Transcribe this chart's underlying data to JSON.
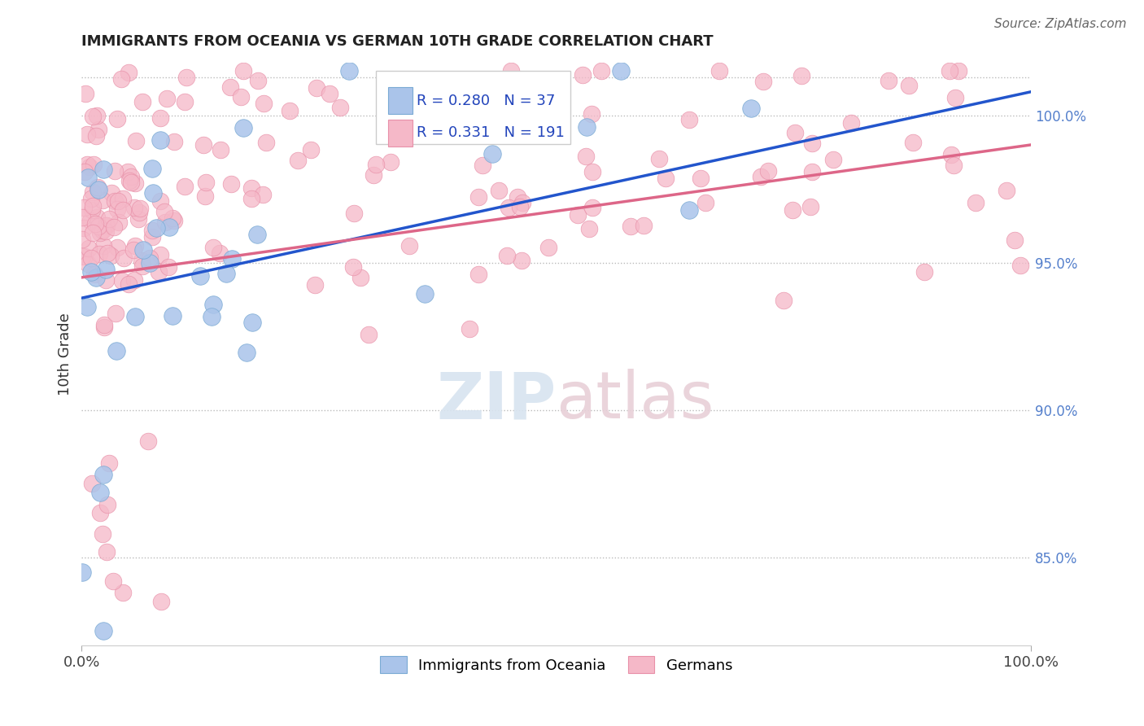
{
  "title": "IMMIGRANTS FROM OCEANIA VS GERMAN 10TH GRADE CORRELATION CHART",
  "source": "Source: ZipAtlas.com",
  "ylabel": "10th Grade",
  "right_yticks": [
    85.0,
    90.0,
    95.0,
    100.0
  ],
  "blue_R": 0.28,
  "blue_N": 37,
  "pink_R": 0.331,
  "pink_N": 191,
  "blue_color": "#aac4ea",
  "pink_color": "#f5b8c8",
  "blue_edge_color": "#7aaad4",
  "pink_edge_color": "#e890a8",
  "blue_line_color": "#2255cc",
  "pink_line_color": "#dd6688",
  "legend_label_blue": "Immigrants from Oceania",
  "legend_label_pink": "Germans",
  "xlim": [
    0.0,
    100.0
  ],
  "ylim": [
    82.0,
    101.8
  ],
  "blue_trend_start_y": 93.8,
  "blue_trend_end_y": 100.8,
  "pink_trend_start_y": 94.5,
  "pink_trend_end_y": 99.0
}
